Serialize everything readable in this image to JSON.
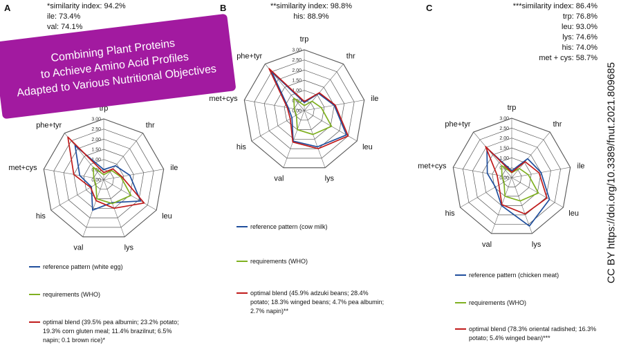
{
  "banner": {
    "lines": [
      "Combining Plant Proteins",
      "to Achieve Amino Acid Profiles",
      "Adapted to Various Nutritional Objectives"
    ],
    "color": "#a21aa0"
  },
  "credit": "CC BY https://doi.org/10.3389/fnut.2021.809685",
  "chart_data": [
    {
      "type": "radar",
      "panel": "A",
      "axes": [
        "trp",
        "thr",
        "ile",
        "leu",
        "lys",
        "val",
        "his",
        "met+cys",
        "phe+tyr"
      ],
      "ticks": [
        "0.00",
        "0.50",
        "1.00",
        "1.50",
        "2.00",
        "2.50",
        "3.00"
      ],
      "rlim": [
        0,
        3
      ],
      "annotations": [
        "*similarity index: 94.2%",
        "ile: 73.4%",
        "val: 74.1%"
      ],
      "series": [
        {
          "name": "reference pattern (white egg)",
          "color": "#1f4e9c",
          "values": [
            0.5,
            0.9,
            1.3,
            2.1,
            1.2,
            1.6,
            0.7,
            1.2,
            2.2
          ]
        },
        {
          "name": "requirements (WHO)",
          "color": "#7fb020",
          "values": [
            0.25,
            0.6,
            0.85,
            1.55,
            1.25,
            1.0,
            0.45,
            0.5,
            0.8
          ]
        },
        {
          "name": "optimal blend (39.5% pea albumin; 23.2% potato; 19.3% corn gluten meal; 11.4% brazilnut; 6.5% napin; 0.1 brown rice)*",
          "color": "#c01a1a",
          "values": [
            0.35,
            0.7,
            0.9,
            2.3,
            1.5,
            1.1,
            0.75,
            1.5,
            2.75
          ]
        }
      ]
    },
    {
      "type": "radar",
      "panel": "B",
      "axes": [
        "trp",
        "thr",
        "ile",
        "leu",
        "lys",
        "val",
        "his",
        "met+cys",
        "phe+tyr"
      ],
      "ticks": [
        "0.00",
        "0.50",
        "1.00",
        "1.50",
        "2.00",
        "2.50",
        "3.00"
      ],
      "rlim": [
        0,
        3
      ],
      "annotations": [
        "**similarity index: 98.8%",
        "his: 88.9%"
      ],
      "series": [
        {
          "name": "reference pattern (cow milk)",
          "color": "#1f4e9c",
          "values": [
            0.4,
            1.1,
            1.5,
            2.4,
            1.9,
            1.6,
            0.7,
            0.8,
            2.5
          ]
        },
        {
          "name": "requirements (WHO)",
          "color": "#7fb020",
          "values": [
            0.25,
            0.6,
            0.85,
            1.55,
            1.25,
            1.0,
            0.45,
            0.5,
            0.8
          ]
        },
        {
          "name": "optimal blend (45.9% adzuki beans; 28.4% potato; 18.3% winged beans; 4.7% pea albumin; 2.7% napin)**",
          "color": "#c01a1a",
          "values": [
            0.45,
            1.15,
            1.55,
            2.5,
            2.0,
            1.65,
            0.8,
            0.85,
            2.7
          ]
        }
      ]
    },
    {
      "type": "radar",
      "panel": "C",
      "axes": [
        "trp",
        "thr",
        "ile",
        "leu",
        "lys",
        "val",
        "his",
        "met+cys",
        "phe+tyr"
      ],
      "ticks": [
        "0.00",
        "0.50",
        "1.00",
        "1.50",
        "2.00",
        "2.50",
        "3.00"
      ],
      "rlim": [
        0,
        3
      ],
      "annotations": [
        "***similarity index: 86.4%",
        "trp: 76.8%",
        "leu: 93.0%",
        "lys: 74.6%",
        "his: 74.0%",
        "met + cys: 58.7%"
      ],
      "series": [
        {
          "name": "reference pattern (chicken meat)",
          "color": "#1f4e9c",
          "values": [
            0.35,
            1.25,
            1.5,
            2.2,
            2.6,
            1.5,
            0.95,
            1.25,
            1.95
          ]
        },
        {
          "name": "requirements (WHO)",
          "color": "#7fb020",
          "values": [
            0.25,
            0.6,
            0.85,
            1.55,
            1.25,
            1.0,
            0.45,
            0.5,
            0.8
          ]
        },
        {
          "name": "optimal blend (78.3% oriental radished; 16.3% potato; 5.4% winged bean)***",
          "color": "#c01a1a",
          "values": [
            0.27,
            1.05,
            1.4,
            2.05,
            1.95,
            1.45,
            0.75,
            0.75,
            2.05
          ]
        }
      ]
    }
  ]
}
